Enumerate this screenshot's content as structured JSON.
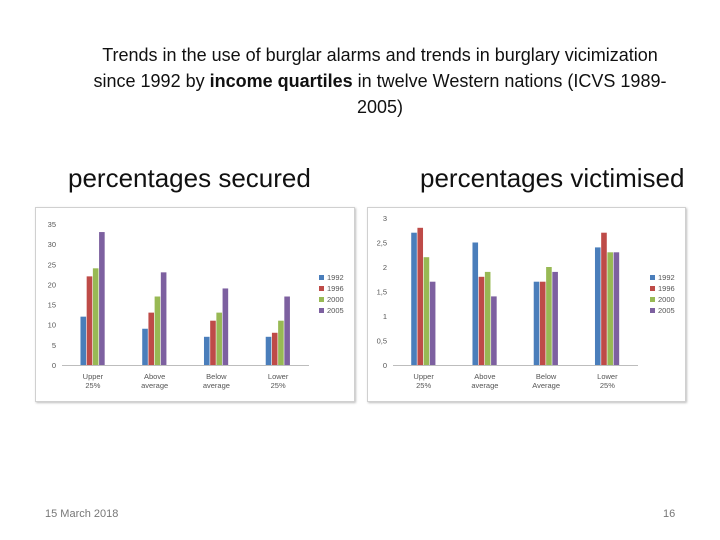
{
  "slide": {
    "title_line1": "Trends in the use of burglar alarms and trends in burglary vicimization",
    "title_line2_pre": "since 1992 by ",
    "title_line2_bold": "income quartiles",
    "title_line2_post": " in twelve Western nations (ICVS 1989-",
    "title_line3": "2005)",
    "subhead_left": "percentages secured",
    "subhead_right": "percentages victimised",
    "footer_date": "15 March 2018",
    "footer_page": "16"
  },
  "colors": [
    "#4a7ebb",
    "#be4b48",
    "#98b954",
    "#7d60a0"
  ],
  "chart_data": [
    {
      "type": "bar",
      "title": "percentages secured",
      "categories": [
        [
          "Upper",
          "25%"
        ],
        [
          "Above",
          "average"
        ],
        [
          "Below",
          "average"
        ],
        [
          "Lower",
          "25%"
        ]
      ],
      "series": [
        {
          "name": "1992",
          "values": [
            12,
            9,
            7,
            7
          ]
        },
        {
          "name": "1996",
          "values": [
            22,
            13,
            11,
            8
          ]
        },
        {
          "name": "2000",
          "values": [
            24,
            17,
            13,
            11
          ]
        },
        {
          "name": "2005",
          "values": [
            33,
            23,
            19,
            17
          ]
        }
      ],
      "ylim": [
        0,
        35
      ],
      "yticks": [
        "0",
        "5",
        "10",
        "15",
        "20",
        "25",
        "30",
        "35"
      ],
      "ytick_values": [
        0,
        5,
        10,
        15,
        20,
        25,
        30,
        35
      ],
      "grid": false,
      "legend_position": "right"
    },
    {
      "type": "bar",
      "title": "percentages victimised",
      "categories": [
        [
          "Upper",
          "25%"
        ],
        [
          "Above",
          "average"
        ],
        [
          "Below",
          "Average"
        ],
        [
          "Lower",
          "25%"
        ]
      ],
      "series": [
        {
          "name": "1992",
          "values": [
            2.7,
            2.5,
            1.7,
            2.4
          ]
        },
        {
          "name": "1996",
          "values": [
            2.8,
            1.8,
            1.7,
            2.7
          ]
        },
        {
          "name": "2000",
          "values": [
            2.2,
            1.9,
            2.0,
            2.3
          ]
        },
        {
          "name": "2005",
          "values": [
            1.7,
            1.4,
            1.9,
            2.3
          ]
        }
      ],
      "ylim": [
        0,
        3
      ],
      "yticks": [
        "0",
        "0,5",
        "1",
        "1,5",
        "2",
        "2,5",
        "3"
      ],
      "ytick_values": [
        0,
        0.5,
        1,
        1.5,
        2,
        2.5,
        3
      ],
      "grid": false,
      "legend_position": "right"
    }
  ]
}
